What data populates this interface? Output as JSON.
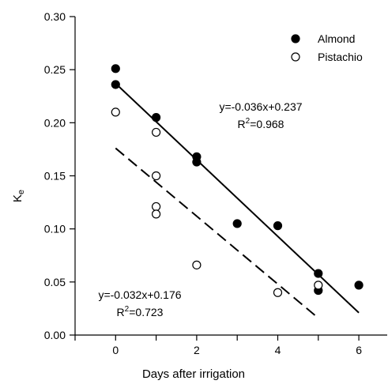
{
  "chart_data": {
    "type": "scatter",
    "xlabel": "Days after irrigation",
    "ylabel_main": "K",
    "ylabel_sub": "e",
    "xlim": [
      -1,
      6.7
    ],
    "ylim": [
      0,
      0.3
    ],
    "x_ticks": [
      0,
      2,
      4,
      6
    ],
    "x_tick_labels": [
      "0",
      "2",
      "4",
      "6"
    ],
    "x_minor_ticks": [
      -1,
      1,
      3,
      5
    ],
    "y_ticks": [
      0,
      0.05,
      0.1,
      0.15,
      0.2,
      0.25,
      0.3
    ],
    "y_tick_labels": [
      "0.00",
      "0.05",
      "0.10",
      "0.15",
      "0.20",
      "0.25",
      "0.30"
    ],
    "grid": false,
    "legend_position": "top-right",
    "series": [
      {
        "name": "Almond",
        "marker": "filled-circle",
        "color": "#000000",
        "x": [
          0,
          0,
          1,
          2,
          2,
          3,
          4,
          5,
          5,
          6
        ],
        "y": [
          0.251,
          0.236,
          0.205,
          0.168,
          0.163,
          0.105,
          0.103,
          0.058,
          0.042,
          0.047
        ],
        "fit": {
          "style": "solid",
          "slope": -0.036,
          "intercept": 0.237,
          "x_range": [
            0,
            6
          ],
          "equation": "y=-0.036x+0.237",
          "r2_prefix": "R",
          "r2_sup": "2",
          "r2_value": "=0.968"
        }
      },
      {
        "name": "Pistachio",
        "marker": "open-circle",
        "color": "#000000",
        "x": [
          0,
          1,
          1,
          1,
          1,
          2,
          4,
          5
        ],
        "y": [
          0.21,
          0.191,
          0.15,
          0.121,
          0.114,
          0.066,
          0.04,
          0.047
        ],
        "fit": {
          "style": "dashed",
          "slope": -0.032,
          "intercept": 0.176,
          "x_range": [
            0,
            5
          ],
          "equation": "y=-0.032x+0.176",
          "r2_prefix": "R",
          "r2_sup": "2",
          "r2_value": "=0.723"
        }
      }
    ]
  }
}
